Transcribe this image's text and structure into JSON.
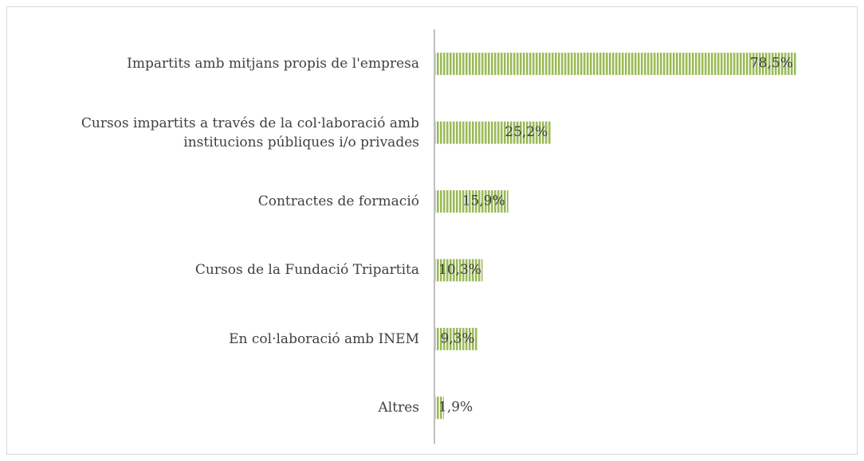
{
  "chart_data": {
    "type": "hbar",
    "categories": [
      "Impartits amb mitjans propis de l'empresa",
      "Cursos impartits a través de la col·laboració amb institucions públiques i/o privades",
      "Contractes de formació",
      "Cursos de la Fundació Tripartita",
      "En col·laboració amb INEM",
      "Altres"
    ],
    "values": [
      78.5,
      25.2,
      15.9,
      10.3,
      9.3,
      1.9
    ],
    "value_labels": [
      "78,5%",
      "25,2%",
      "15,9%",
      "10,3%",
      "9,3%",
      "1,9%"
    ],
    "color": "#9bbb59"
  }
}
